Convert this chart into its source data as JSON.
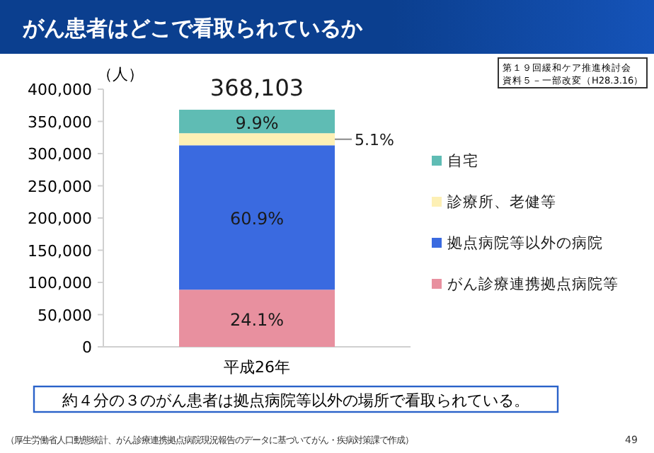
{
  "chart_data": {
    "type": "bar",
    "title": "がん患者はどこで看取られているか",
    "ylabel": "（人）",
    "stacked": true,
    "categories": [
      "平成26年"
    ],
    "series": [
      {
        "name": "がん診療連携拠点病院等",
        "color": "#e8909f",
        "values": [
          88713
        ]
      },
      {
        "name": "拠点病院等以外の病院",
        "color": "#3a6ae0",
        "values": [
          224175
        ]
      },
      {
        "name": "診療所、老健等",
        "color": "#fdf0b5",
        "values": [
          18773
        ]
      },
      {
        "name": "自宅",
        "color": "#5fbcb4",
        "values": [
          36442
        ]
      }
    ],
    "totals": [
      "368,103"
    ],
    "ylim": [
      0,
      400000
    ],
    "yticks": [
      {
        "value": 0,
        "label": "0"
      },
      {
        "value": 50000,
        "label": "50,000"
      },
      {
        "value": 100000,
        "label": "100,000"
      },
      {
        "value": 150000,
        "label": "150,000"
      },
      {
        "value": 200000,
        "label": "200,000"
      },
      {
        "value": 250000,
        "label": "250,000"
      },
      {
        "value": 300000,
        "label": "300,000"
      },
      {
        "value": 350000,
        "label": "350,000"
      },
      {
        "value": 400000,
        "label": "400,000"
      }
    ],
    "legend": "right",
    "grid": false,
    "annotations": [
      "24.1%",
      "60.9%",
      "5.1%",
      "9.9%",
      "第１９回緩和ケア推進検討会",
      "資料５－一部改変（H28.3.16）",
      "約４分の３のがん患者は拠点病院等以外の場所で看取られている。",
      "（厚生労働省人口動態統計、がん診療連携拠点病院現況報告のデータに基づいてがん・疾病対策課で作成）",
      "49"
    ]
  }
}
